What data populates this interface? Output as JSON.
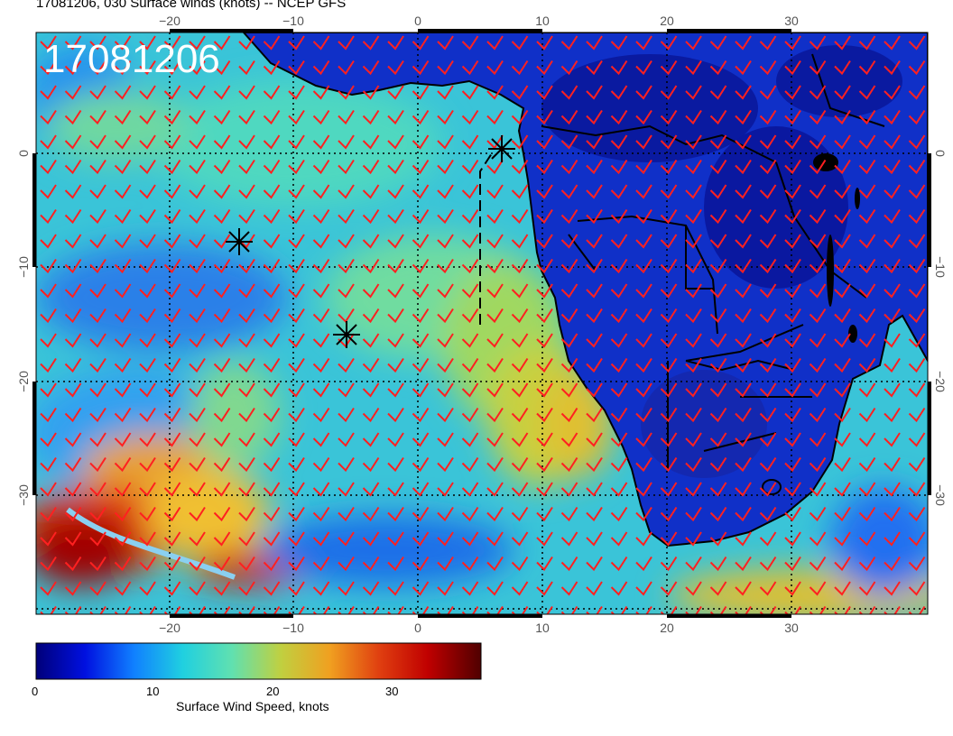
{
  "header": {
    "title": "17081206, 030 Surface winds (knots) -- NCEP GFS"
  },
  "map": {
    "stamp": "17081206",
    "lon_ticks": [
      "−20",
      "−10",
      "0",
      "10",
      "20",
      "30"
    ],
    "lat_ticks": [
      "0",
      "−10",
      "−20",
      "−30"
    ],
    "markers": [
      "asterisk",
      "asterisk",
      "asterisk"
    ],
    "barb_color": "#ff2020",
    "coast_color": "#000000"
  },
  "colorbar": {
    "title": "Surface Wind Speed, knots",
    "ticks": [
      "0",
      "10",
      "20",
      "30"
    ],
    "stops": [
      "#00007a",
      "#0010e0",
      "#1080ff",
      "#20d0e0",
      "#60e0b0",
      "#c0d040",
      "#f0a020",
      "#e04010",
      "#c00000",
      "#500000"
    ]
  }
}
